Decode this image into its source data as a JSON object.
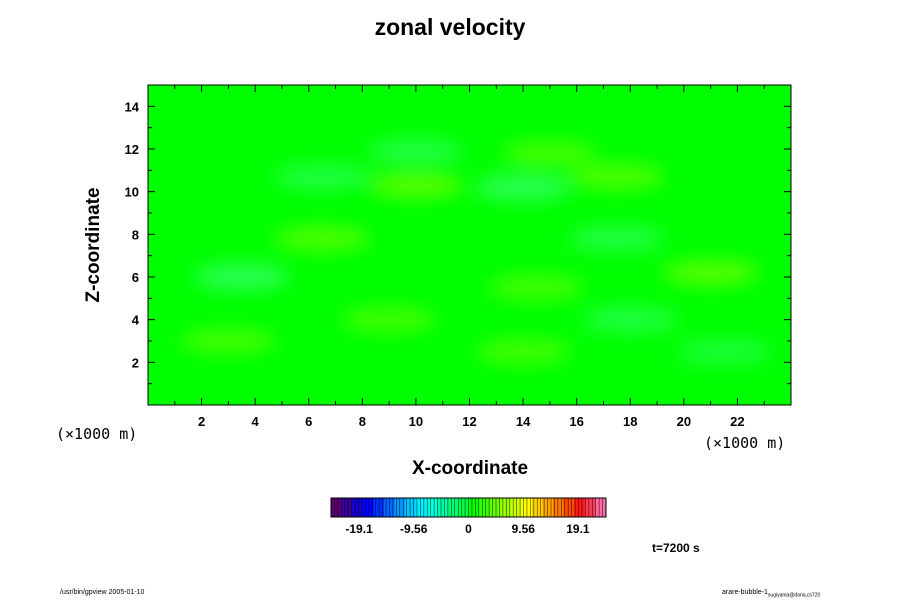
{
  "figure": {
    "title": "zonal velocity",
    "time_label": "t=7200 s",
    "footer_left": "/usr/bin/gpview 2005-01-10",
    "footer_right_main": "arare-bubble-1",
    "footer_right_sub": "sugiyama@dana,cs720"
  },
  "colors": {
    "field_base": "#00ff00",
    "negative_tint": "#33ff66",
    "positive_tint": "#66ff00",
    "colorbar": [
      "#5c006e",
      "#3a009e",
      "#1400d0",
      "#0000ff",
      "#0030ff",
      "#0066ff",
      "#0099ff",
      "#00c8ff",
      "#00eeff",
      "#00ffdd",
      "#00ffaa",
      "#00ff77",
      "#00ff44",
      "#00ff00",
      "#33ff00",
      "#66ff00",
      "#99ff00",
      "#ccff00",
      "#ffff00",
      "#ffd200",
      "#ffa500",
      "#ff7800",
      "#ff4800",
      "#ff1a1a",
      "#ff3a55",
      "#ff6aa0"
    ]
  },
  "chart_data": {
    "type": "heatmap",
    "variable": "zonal velocity",
    "xlabel": "X-coordinate",
    "ylabel": "Z-coordinate",
    "x_scale_label": "(×1000 m)",
    "y_scale_label": "(×1000 m)",
    "xlim": [
      0,
      24
    ],
    "ylim": [
      0,
      15
    ],
    "x_ticks": [
      "2",
      "4",
      "6",
      "8",
      "10",
      "12",
      "14",
      "16",
      "18",
      "20",
      "22"
    ],
    "y_ticks": [
      "2",
      "4",
      "6",
      "8",
      "10",
      "12",
      "14"
    ],
    "colorbar_ticks": [
      "-19.1",
      "-9.56",
      "0",
      "9.56",
      "19.1"
    ],
    "colorbar_tick_values": [
      -19.1,
      -9.56,
      0,
      9.56,
      19.1
    ],
    "color_range": [
      -24,
      24
    ],
    "grid": false,
    "field_note": "near-zero field; weak anomalies between about -3 and +3",
    "anomalies": [
      {
        "x": 3.5,
        "z": 6.0,
        "value": -2.5
      },
      {
        "x": 10.0,
        "z": 10.3,
        "value": 2.5
      },
      {
        "x": 14.0,
        "z": 10.2,
        "value": -2.5
      },
      {
        "x": 21.0,
        "z": 6.2,
        "value": 2.5
      },
      {
        "x": 17.5,
        "z": 10.7,
        "value": 2.0
      },
      {
        "x": 6.5,
        "z": 7.8,
        "value": 2.0
      },
      {
        "x": 17.5,
        "z": 7.8,
        "value": -1.5
      },
      {
        "x": 15.0,
        "z": 11.8,
        "value": 1.5
      },
      {
        "x": 10.0,
        "z": 11.9,
        "value": -1.5
      },
      {
        "x": 3.0,
        "z": 3.0,
        "value": 1.5
      },
      {
        "x": 9.0,
        "z": 4.0,
        "value": 1.5
      },
      {
        "x": 14.0,
        "z": 2.5,
        "value": 1.5
      },
      {
        "x": 18.0,
        "z": 4.0,
        "value": -1.5
      },
      {
        "x": 14.5,
        "z": 5.5,
        "value": 1.5
      },
      {
        "x": 6.5,
        "z": 10.7,
        "value": -1.5
      },
      {
        "x": 21.5,
        "z": 2.5,
        "value": -1.0
      }
    ]
  }
}
